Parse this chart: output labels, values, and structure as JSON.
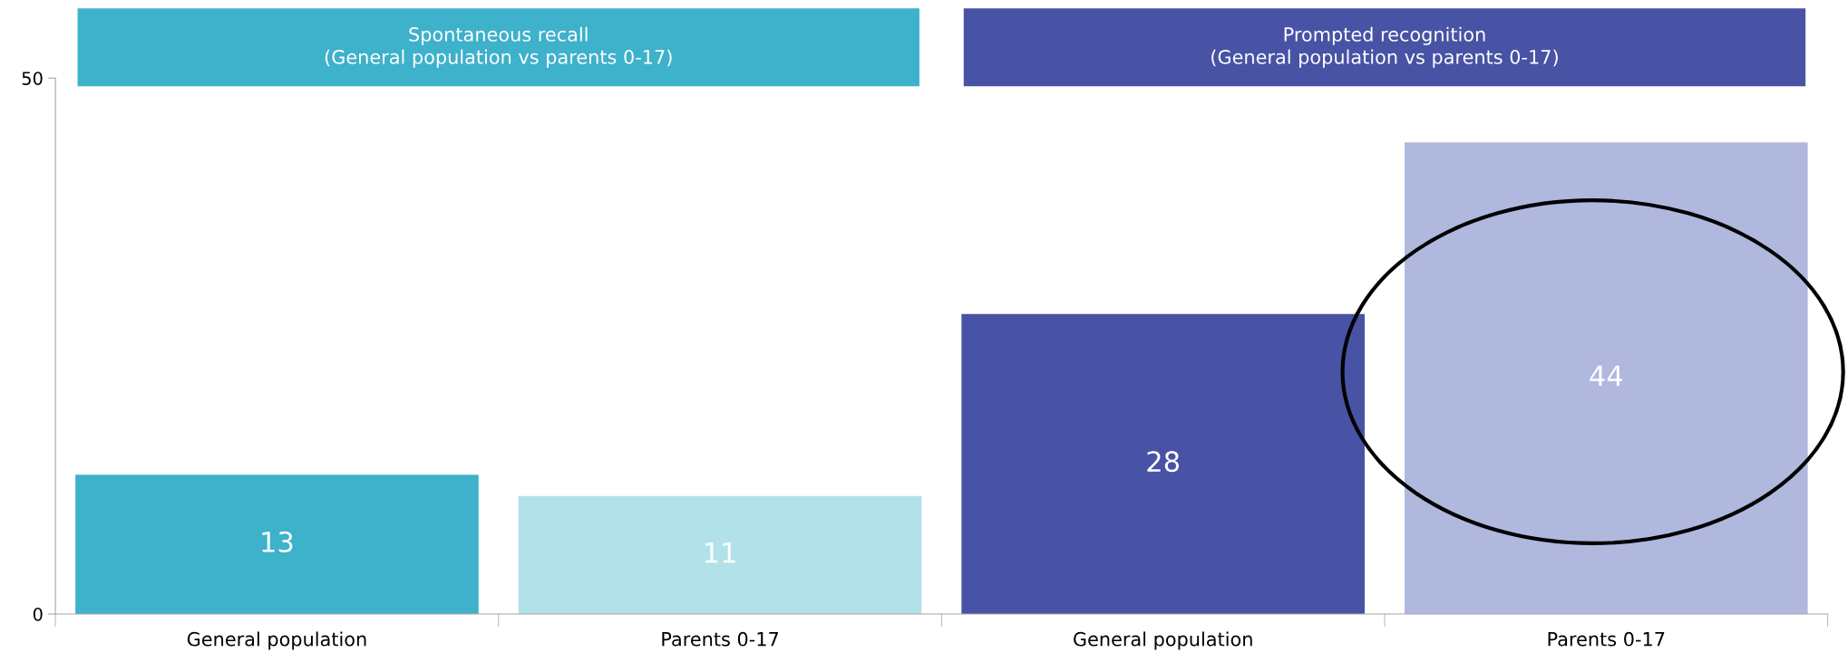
{
  "chart_data": {
    "type": "bar",
    "categories": [
      "General population",
      "Parents 0-17",
      "General population",
      "Parents 0-17"
    ],
    "values": [
      13,
      11,
      28,
      44
    ],
    "colors": [
      "#3eb1cb",
      "#b2e1ea",
      "#4853a5",
      "#b0b8de"
    ],
    "ylim": [
      0,
      50
    ],
    "yticks": [
      0,
      50
    ],
    "data_labels": true,
    "grid": false,
    "annotations": [
      "Spontaneous recall\n(General population vs parents 0-17)",
      "Prompted recognition\n(General population vs parents 0-17)"
    ]
  }
}
